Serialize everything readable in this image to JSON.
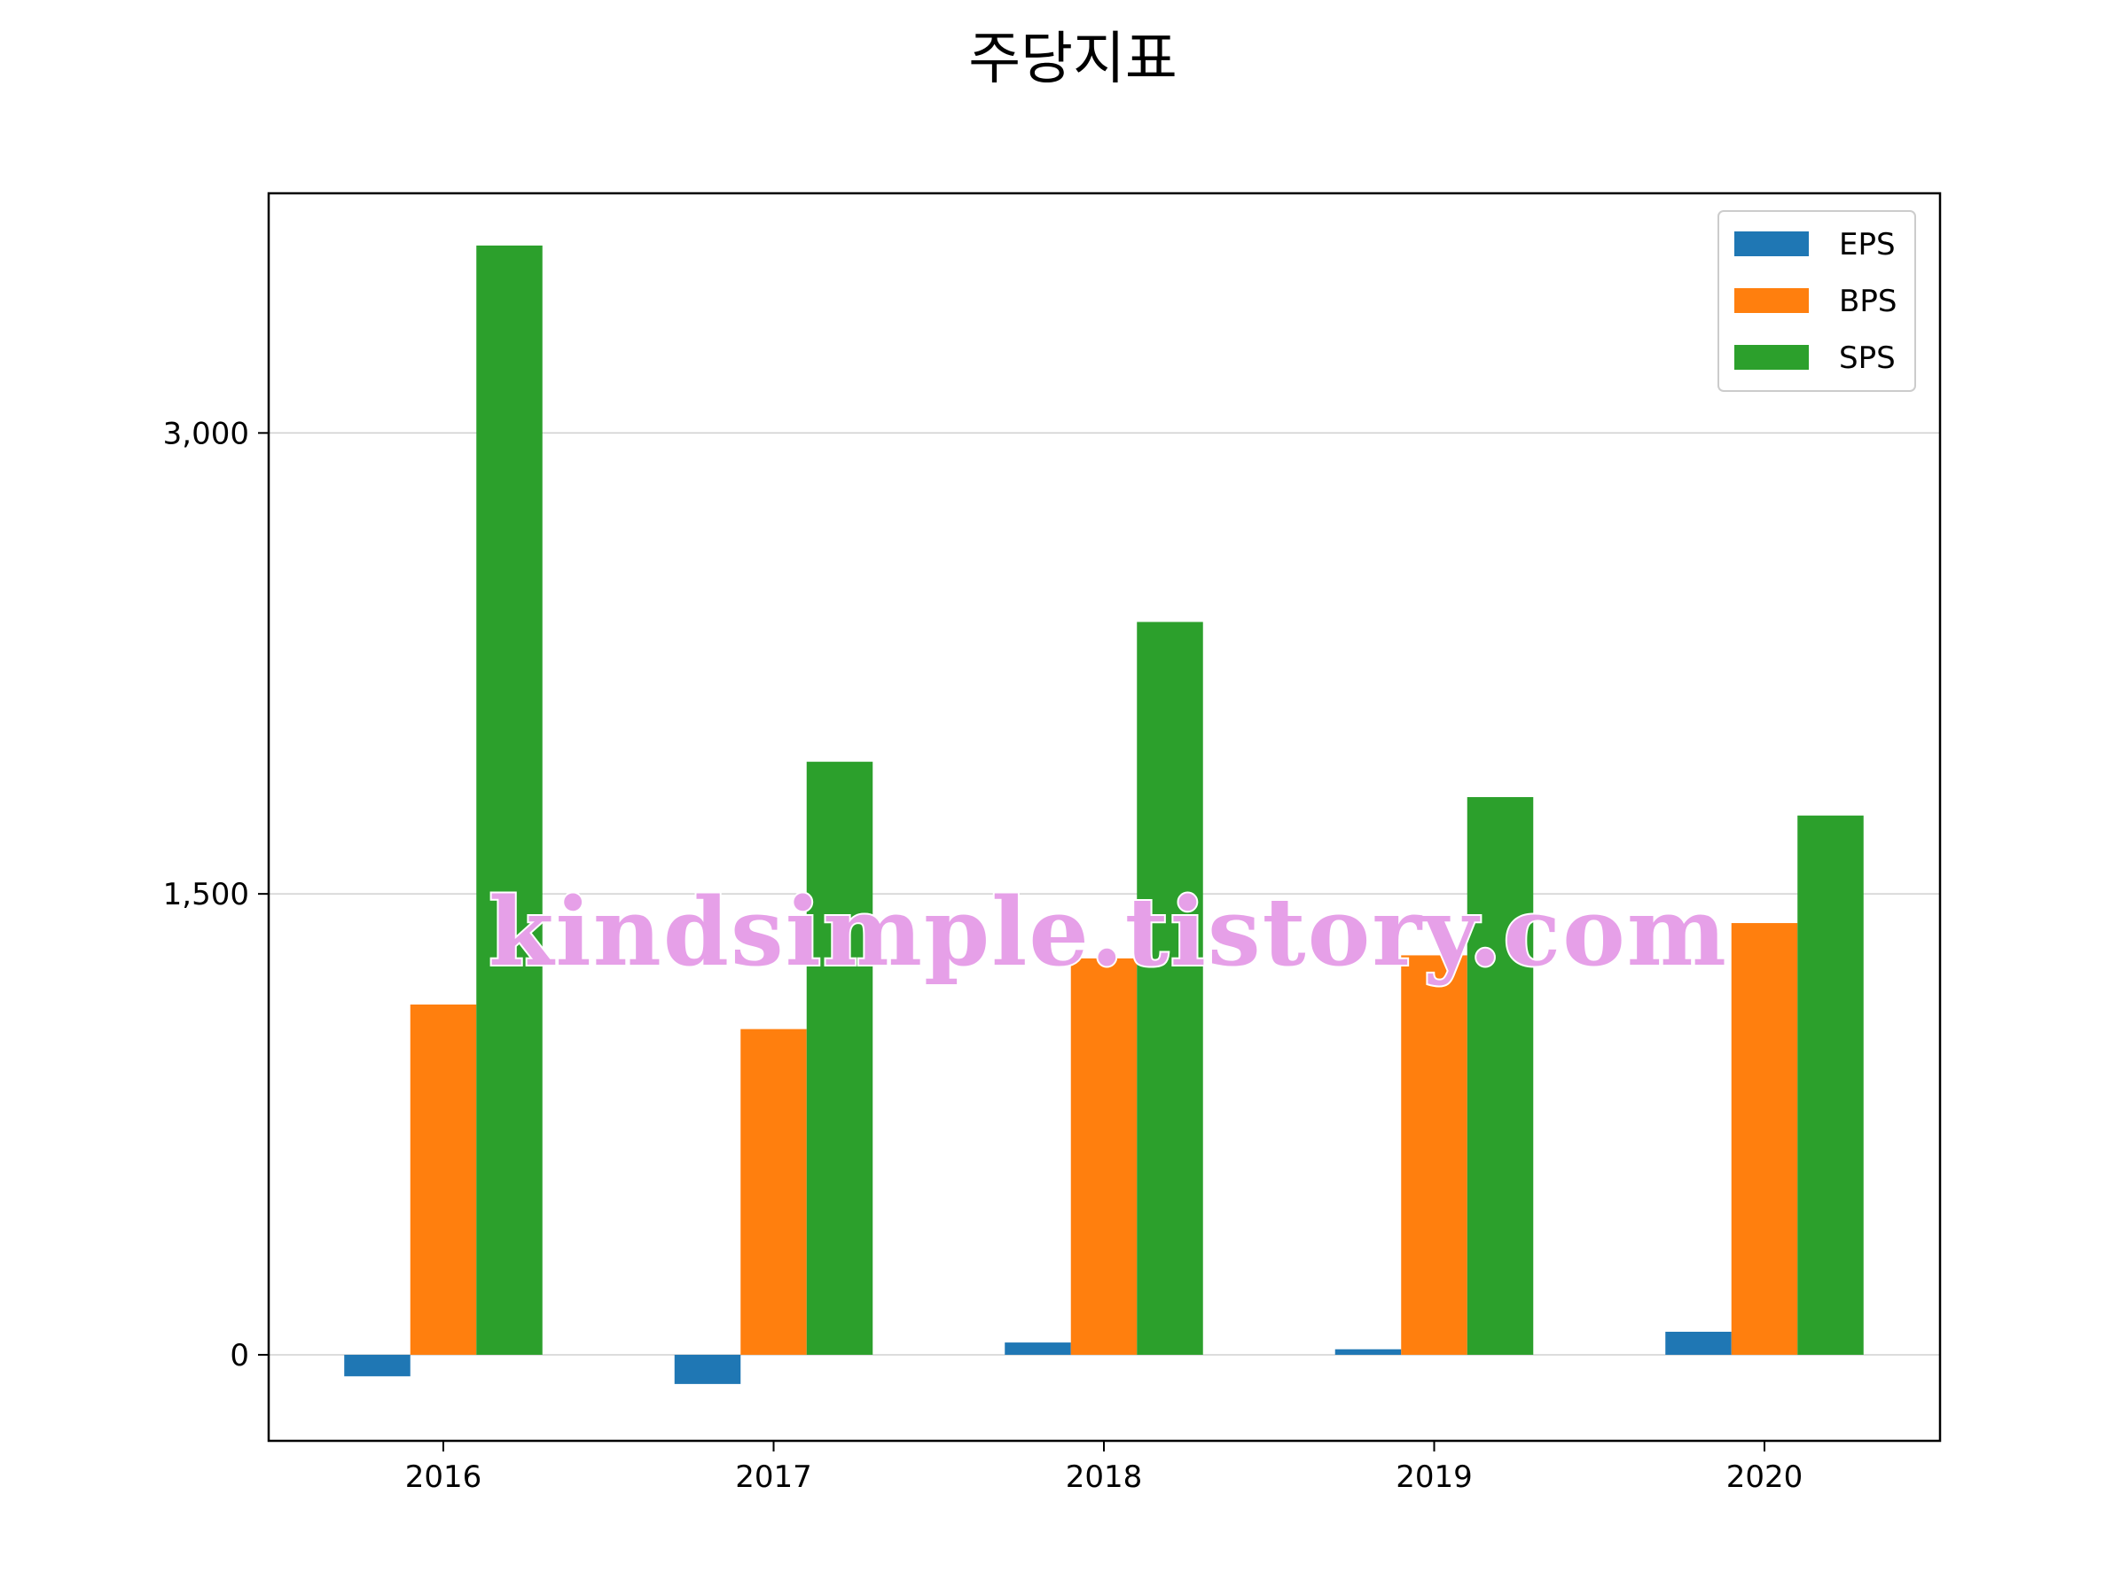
{
  "chart_data": {
    "type": "bar",
    "title": "주당지표",
    "xlabel": "",
    "ylabel": "",
    "categories": [
      "2016",
      "2017",
      "2018",
      "2019",
      "2020"
    ],
    "series": [
      {
        "name": "EPS",
        "color": "#1f77b4",
        "values": [
          -70,
          -95,
          40,
          18,
          75
        ]
      },
      {
        "name": "BPS",
        "color": "#ff7f0e",
        "values": [
          1140,
          1060,
          1290,
          1300,
          1405
        ]
      },
      {
        "name": "SPS",
        "color": "#2ca02c",
        "values": [
          3610,
          1930,
          2385,
          1815,
          1755
        ]
      }
    ],
    "ylim": [
      -280,
      3780
    ],
    "yticks": [
      0,
      1500,
      3000
    ],
    "ytick_labels": [
      "0",
      "1,500",
      "3,000"
    ],
    "grid": "horizontal",
    "legend_position": "top-right"
  },
  "watermark": {
    "text": "kindsimple.tistory.com",
    "color": "#e6a0e8"
  }
}
